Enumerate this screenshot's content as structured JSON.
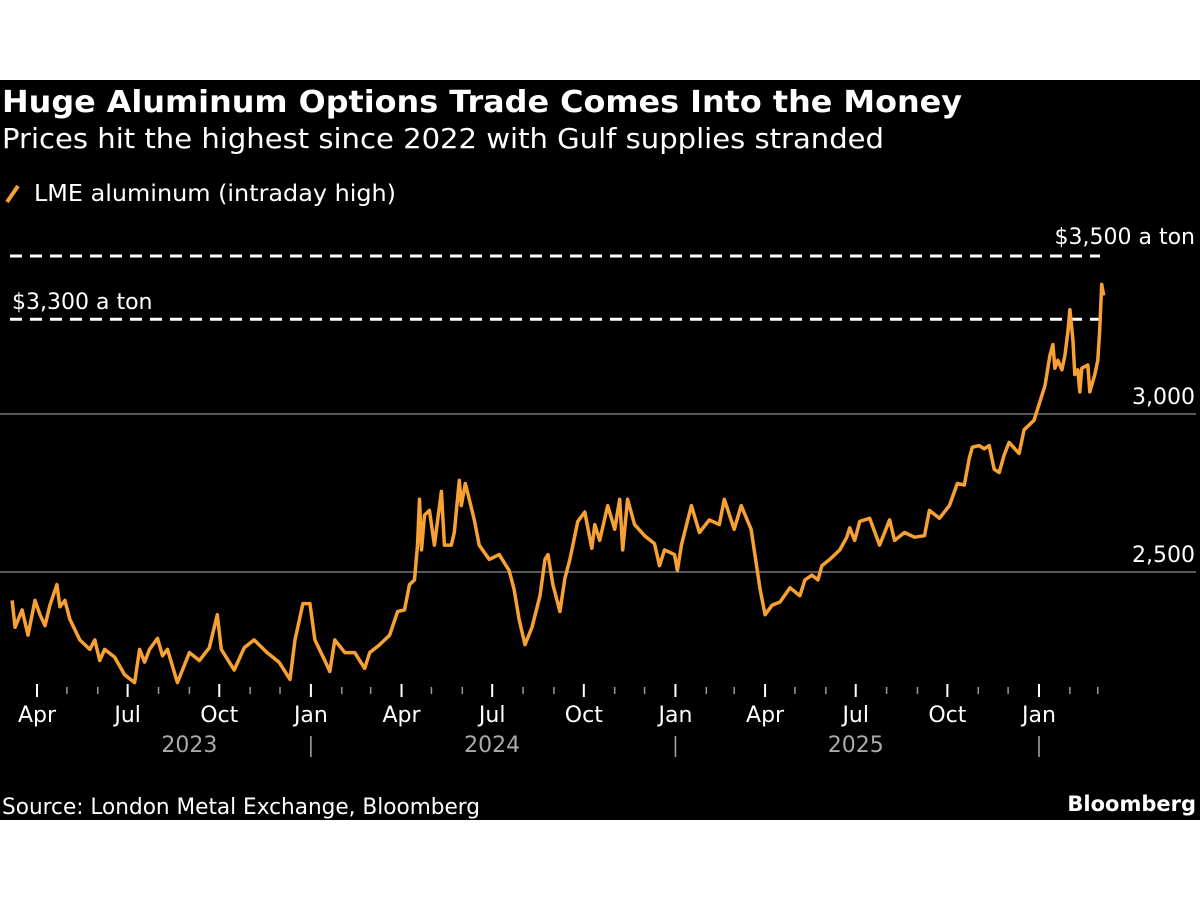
{
  "chart_data": {
    "type": "line",
    "title": "Huge Aluminum Options Trade Comes Into the Money",
    "subtitle": "Prices hit the highest since 2022 with Gulf supplies stranded",
    "legend_position": "top-left",
    "series": [
      {
        "name": "LME aluminum (intraday high)",
        "color": "#f7a134",
        "dates": [
          "2023-03-07",
          "2023-03-10",
          "2023-03-17",
          "2023-03-23",
          "2023-03-30",
          "2023-04-04",
          "2023-04-09",
          "2023-04-14",
          "2023-04-21",
          "2023-04-24",
          "2023-04-29",
          "2023-05-04",
          "2023-05-14",
          "2023-05-24",
          "2023-05-29",
          "2023-06-03",
          "2023-06-08",
          "2023-06-18",
          "2023-06-28",
          "2023-07-08",
          "2023-07-13",
          "2023-07-18",
          "2023-07-23",
          "2023-07-31",
          "2023-08-05",
          "2023-08-10",
          "2023-08-20",
          "2023-09-01",
          "2023-09-11",
          "2023-09-21",
          "2023-09-29",
          "2023-10-03",
          "2023-10-16",
          "2023-10-26",
          "2023-11-05",
          "2023-11-18",
          "2023-11-30",
          "2023-12-11",
          "2023-12-16",
          "2023-12-24",
          "2023-12-31",
          "2024-01-05",
          "2024-01-15",
          "2024-01-20",
          "2024-01-25",
          "2024-02-04",
          "2024-02-14",
          "2024-02-24",
          "2024-02-29",
          "2024-03-10",
          "2024-03-20",
          "2024-03-28",
          "2024-04-04",
          "2024-04-09",
          "2024-04-14",
          "2024-04-17",
          "2024-04-19",
          "2024-04-21",
          "2024-04-24",
          "2024-04-29",
          "2024-05-04",
          "2024-05-11",
          "2024-05-14",
          "2024-05-21",
          "2024-05-24",
          "2024-05-29",
          "2024-05-31",
          "2024-06-04",
          "2024-06-08",
          "2024-06-13",
          "2024-06-18",
          "2024-06-28",
          "2024-07-08",
          "2024-07-18",
          "2024-07-23",
          "2024-07-28",
          "2024-08-03",
          "2024-08-10",
          "2024-08-18",
          "2024-08-23",
          "2024-08-26",
          "2024-08-31",
          "2024-09-07",
          "2024-09-12",
          "2024-09-17",
          "2024-09-25",
          "2024-10-02",
          "2024-10-09",
          "2024-10-12",
          "2024-10-17",
          "2024-10-25",
          "2024-11-01",
          "2024-11-06",
          "2024-11-09",
          "2024-11-14",
          "2024-11-21",
          "2024-12-01",
          "2024-12-11",
          "2024-12-16",
          "2024-12-21",
          "2024-12-31",
          "2025-01-03",
          "2025-01-07",
          "2025-01-17",
          "2025-01-25",
          "2025-02-04",
          "2025-02-14",
          "2025-02-19",
          "2025-03-01",
          "2025-03-08",
          "2025-03-18",
          "2025-03-27",
          "2025-04-01",
          "2025-04-08",
          "2025-04-16",
          "2025-04-26",
          "2025-05-06",
          "2025-05-11",
          "2025-05-18",
          "2025-05-24",
          "2025-05-28",
          "2025-06-05",
          "2025-06-15",
          "2025-06-22",
          "2025-06-25",
          "2025-06-30",
          "2025-07-05",
          "2025-07-15",
          "2025-07-25",
          "2025-08-04",
          "2025-08-09",
          "2025-08-19",
          "2025-08-29",
          "2025-09-08",
          "2025-09-13",
          "2025-09-23",
          "2025-10-03",
          "2025-10-11",
          "2025-10-18",
          "2025-10-23",
          "2025-10-26",
          "2025-11-02",
          "2025-11-07",
          "2025-11-12",
          "2025-11-17",
          "2025-11-22",
          "2025-11-27",
          "2025-12-02",
          "2025-12-12",
          "2025-12-17",
          "2025-12-27",
          "2026-01-02",
          "2026-01-07",
          "2026-01-12",
          "2026-01-15",
          "2026-01-17",
          "2026-01-20",
          "2026-01-24",
          "2026-01-27",
          "2026-01-30",
          "2026-02-01",
          "2026-02-04",
          "2026-02-06",
          "2026-02-09",
          "2026-02-11",
          "2026-02-13",
          "2026-02-19",
          "2026-02-21",
          "2026-02-26",
          "2026-03-01",
          "2026-03-03",
          "2026-03-05",
          "2026-03-07"
        ],
        "values": [
          2410,
          2325,
          2380,
          2300,
          2410,
          2365,
          2330,
          2395,
          2460,
          2390,
          2410,
          2350,
          2285,
          2255,
          2285,
          2220,
          2255,
          2230,
          2175,
          2150,
          2255,
          2215,
          2255,
          2290,
          2235,
          2255,
          2150,
          2245,
          2220,
          2260,
          2365,
          2255,
          2190,
          2260,
          2285,
          2245,
          2215,
          2160,
          2285,
          2400,
          2400,
          2285,
          2220,
          2185,
          2285,
          2245,
          2245,
          2195,
          2245,
          2270,
          2300,
          2375,
          2380,
          2460,
          2475,
          2585,
          2730,
          2570,
          2680,
          2695,
          2585,
          2755,
          2585,
          2585,
          2625,
          2790,
          2710,
          2780,
          2730,
          2665,
          2585,
          2540,
          2555,
          2505,
          2445,
          2350,
          2270,
          2325,
          2425,
          2540,
          2555,
          2460,
          2375,
          2480,
          2540,
          2660,
          2690,
          2575,
          2650,
          2600,
          2710,
          2635,
          2730,
          2570,
          2730,
          2650,
          2615,
          2590,
          2520,
          2570,
          2555,
          2505,
          2585,
          2710,
          2625,
          2665,
          2650,
          2730,
          2635,
          2710,
          2635,
          2445,
          2365,
          2395,
          2405,
          2450,
          2425,
          2475,
          2490,
          2475,
          2520,
          2540,
          2570,
          2610,
          2640,
          2600,
          2660,
          2670,
          2585,
          2665,
          2600,
          2625,
          2610,
          2615,
          2695,
          2670,
          2710,
          2780,
          2775,
          2860,
          2895,
          2900,
          2890,
          2900,
          2825,
          2815,
          2870,
          2910,
          2875,
          2950,
          2980,
          3040,
          3090,
          3185,
          3220,
          3145,
          3170,
          3140,
          3185,
          3260,
          3330,
          3235,
          3125,
          3140,
          3070,
          3145,
          3155,
          3070,
          3125,
          3170,
          3265,
          3410,
          3375
        ]
      }
    ],
    "y_axis": {
      "ticks": [
        {
          "value": 2500,
          "label": "2,500"
        },
        {
          "value": 3000,
          "label": "3,000"
        }
      ],
      "grid": true,
      "position": "right"
    },
    "reference_lines": [
      {
        "value": 3500,
        "label": "$3,500 a ton",
        "style": "dashed"
      },
      {
        "value": 3300,
        "label": "$3,300 a ton",
        "style": "dashed"
      }
    ],
    "x_axis": {
      "month_ticks": [
        {
          "date": "2023-04-01",
          "label": "Apr"
        },
        {
          "date": "2023-07-01",
          "label": "Jul"
        },
        {
          "date": "2023-10-01",
          "label": "Oct"
        },
        {
          "date": "2024-01-01",
          "label": "Jan"
        },
        {
          "date": "2024-04-01",
          "label": "Apr"
        },
        {
          "date": "2024-07-01",
          "label": "Jul"
        },
        {
          "date": "2024-10-01",
          "label": "Oct"
        },
        {
          "date": "2025-01-01",
          "label": "Jan"
        },
        {
          "date": "2025-04-01",
          "label": "Apr"
        },
        {
          "date": "2025-07-01",
          "label": "Jul"
        },
        {
          "date": "2025-10-01",
          "label": "Oct"
        },
        {
          "date": "2026-01-01",
          "label": "Jan"
        }
      ],
      "year_labels": [
        {
          "date": "2023-09-01",
          "label": "2023"
        },
        {
          "date": "2024-07-01",
          "label": "2024"
        },
        {
          "date": "2025-07-01",
          "label": "2025"
        }
      ],
      "year_separators": [
        "2024-01-01",
        "2025-01-01",
        "2026-01-01"
      ]
    }
  },
  "footer": {
    "source": "Source: London Metal Exchange, Bloomberg",
    "logo": "Bloomberg"
  },
  "colors": {
    "background": "#000000",
    "line": "#f7a134",
    "grid": "#777777"
  }
}
